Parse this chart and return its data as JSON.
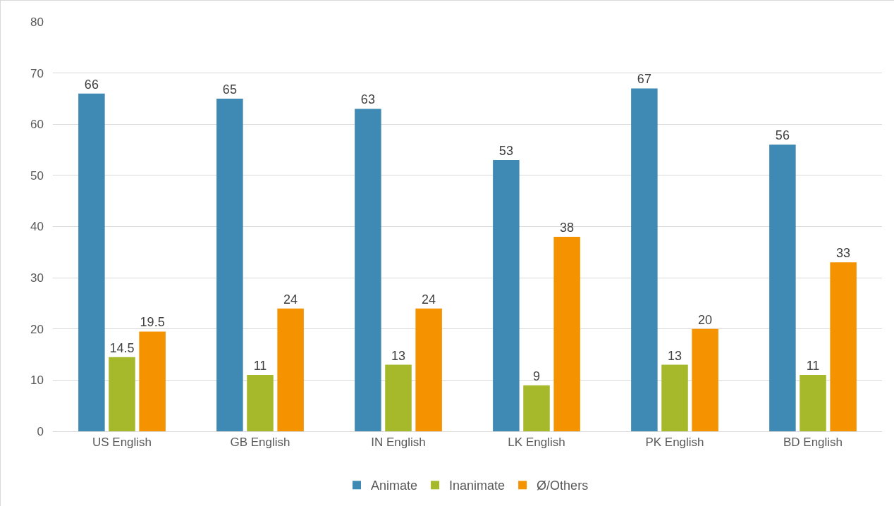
{
  "chart_data": {
    "type": "bar",
    "categories": [
      "US English",
      "GB English",
      "IN English",
      "LK English",
      "PK English",
      "BD English"
    ],
    "series": [
      {
        "name": "Animate",
        "color": "#3f8ab5",
        "values": [
          66,
          65,
          63,
          53,
          67,
          56
        ]
      },
      {
        "name": "Inanimate",
        "color": "#a5b92a",
        "values": [
          14.5,
          11,
          13,
          9,
          13,
          11
        ]
      },
      {
        "name": "Ø/Others",
        "color": "#f59200",
        "values": [
          19.5,
          24,
          24,
          38,
          20,
          33
        ]
      }
    ],
    "ylim": [
      0,
      80
    ],
    "yticks": [
      0,
      10,
      20,
      30,
      40,
      50,
      60,
      70,
      80
    ],
    "grid": "y",
    "legend": "bottom",
    "data_labels": true
  }
}
